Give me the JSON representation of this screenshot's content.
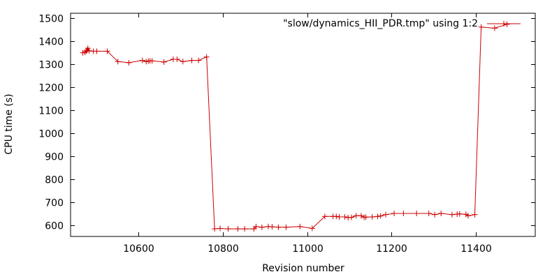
{
  "chart_data": {
    "type": "line",
    "title": "",
    "xlabel": "Revision number",
    "ylabel": "CPU time (s)",
    "xlim": [
      10440,
      11540
    ],
    "ylim": [
      550,
      1520
    ],
    "xticks": [
      10600,
      10800,
      11000,
      11200,
      11400
    ],
    "yticks": [
      600,
      700,
      800,
      900,
      1000,
      1100,
      1200,
      1300,
      1400,
      1500
    ],
    "grid": false,
    "legend_position": "top-right",
    "series": [
      {
        "name": "\"slow/dynamics_HII_PDR.tmp\" using 1:2",
        "color": "#cc0000",
        "marker": "plus",
        "x": [
          10469,
          10474,
          10477,
          10479,
          10481,
          10484,
          10494,
          10502,
          10527,
          10552,
          10578,
          10610,
          10619,
          10624,
          10628,
          10633,
          10661,
          10683,
          10692,
          10706,
          10727,
          10743,
          10762,
          10781,
          10794,
          10813,
          10836,
          10852,
          10874,
          10879,
          10893,
          10908,
          10917,
          10932,
          10950,
          10983,
          11012,
          11042,
          11061,
          11069,
          11076,
          11089,
          11097,
          11105,
          11116,
          11128,
          11135,
          11139,
          11154,
          11167,
          11174,
          11186,
          11206,
          11228,
          11259,
          11288,
          11302,
          11317,
          11343,
          11355,
          11361,
          11376,
          11381,
          11397,
          11412,
          11444,
          11473
        ],
        "y": [
          1348,
          1350,
          1355,
          1360,
          1368,
          1357,
          1355,
          1355,
          1355,
          1310,
          1305,
          1315,
          1310,
          1312,
          1313,
          1313,
          1308,
          1320,
          1320,
          1310,
          1315,
          1315,
          1330,
          583,
          585,
          583,
          583,
          583,
          583,
          593,
          590,
          593,
          592,
          590,
          590,
          593,
          585,
          637,
          637,
          637,
          635,
          635,
          632,
          633,
          640,
          640,
          633,
          634,
          635,
          637,
          639,
          645,
          650,
          650,
          650,
          650,
          645,
          650,
          645,
          647,
          648,
          646,
          640,
          645,
          1460,
          1455,
          1472
        ]
      }
    ]
  }
}
